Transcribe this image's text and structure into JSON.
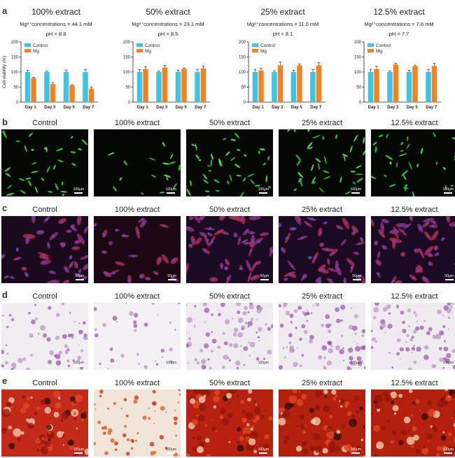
{
  "panels": {
    "a": "a",
    "b": "b",
    "c": "c",
    "d": "d",
    "e": "e"
  },
  "extracts": [
    "100% extract",
    "50% extract",
    "25% extract",
    "12.5% extract"
  ],
  "row_labels": [
    "Control",
    "100% extract",
    "50% extract",
    "25% extract",
    "12.5% extract"
  ],
  "scale_labels": {
    "b": "100μm",
    "c": "50μm",
    "d": "100μm",
    "e": "100μm"
  },
  "colors": {
    "control": "#3fc3e0",
    "mg": "#f58220"
  },
  "chart_data": [
    {
      "type": "bar",
      "title": "100% extract",
      "subtitle": "Mg²⁺concentrations = 44.1 mM",
      "ph": "pH = 8.8",
      "categories": [
        "Day 1",
        "Day 3",
        "Day 5",
        "Day 7"
      ],
      "ylabel": "Cell viability (%)",
      "ylim": [
        0,
        200
      ],
      "yticks": [
        "0",
        "50",
        "100",
        "150",
        "200"
      ],
      "legend": [
        "Control",
        "Mg"
      ],
      "series": [
        {
          "name": "Control",
          "values": [
            100,
            100,
            100,
            100
          ],
          "errors": [
            6,
            4,
            7,
            9
          ]
        },
        {
          "name": "Mg",
          "values": [
            80,
            60,
            55,
            45
          ],
          "errors": [
            3,
            5,
            2,
            5
          ]
        }
      ]
    },
    {
      "type": "bar",
      "title": "50% extract",
      "subtitle": "Mg²⁺concentrations = 23.1 mM",
      "ph": "pH = 8.5",
      "categories": [
        "Day 1",
        "Day 3",
        "Day 5",
        "Day 7"
      ],
      "ylabel": "",
      "ylim": [
        0,
        200
      ],
      "yticks": [
        "0",
        "50",
        "100",
        "150",
        "200"
      ],
      "legend": [
        "Control",
        "Mg"
      ],
      "series": [
        {
          "name": "Control",
          "values": [
            100,
            100,
            100,
            100
          ],
          "errors": [
            8,
            4,
            6,
            9
          ]
        },
        {
          "name": "Mg",
          "values": [
            110,
            115,
            110,
            112
          ],
          "errors": [
            8,
            7,
            3,
            8
          ]
        }
      ]
    },
    {
      "type": "bar",
      "title": "25% extract",
      "subtitle": "Mg²⁺concentrations = 11.0 mM",
      "ph": "pH = 8.1",
      "categories": [
        "Day 1",
        "Day 3",
        "Day 5",
        "Day 7"
      ],
      "ylabel": "",
      "ylim": [
        0,
        200
      ],
      "yticks": [
        "0",
        "50",
        "100",
        "150",
        "200"
      ],
      "legend": [
        "Control",
        "Mg"
      ],
      "series": [
        {
          "name": "Control",
          "values": [
            100,
            100,
            100,
            100
          ],
          "errors": [
            9,
            4,
            6,
            8
          ]
        },
        {
          "name": "Mg",
          "values": [
            105,
            122,
            122,
            122
          ],
          "errors": [
            8,
            11,
            4,
            9
          ]
        }
      ]
    },
    {
      "type": "bar",
      "title": "12.5% extract",
      "subtitle": "Mg²⁺concentrations = 7.6 mM",
      "ph": "pH = 7.7",
      "categories": [
        "Day 1",
        "Day 3",
        "Day 5",
        "Day 7"
      ],
      "ylabel": "",
      "ylim": [
        0,
        200
      ],
      "yticks": [
        "0",
        "50",
        "100",
        "150",
        "200"
      ],
      "legend": [
        "Control",
        "Mg"
      ],
      "series": [
        {
          "name": "Control",
          "values": [
            100,
            100,
            100,
            100
          ],
          "errors": [
            9,
            4,
            6,
            9
          ]
        },
        {
          "name": "Mg",
          "values": [
            110,
            125,
            120,
            120
          ],
          "errors": [
            9,
            4,
            3,
            9
          ]
        }
      ]
    }
  ]
}
